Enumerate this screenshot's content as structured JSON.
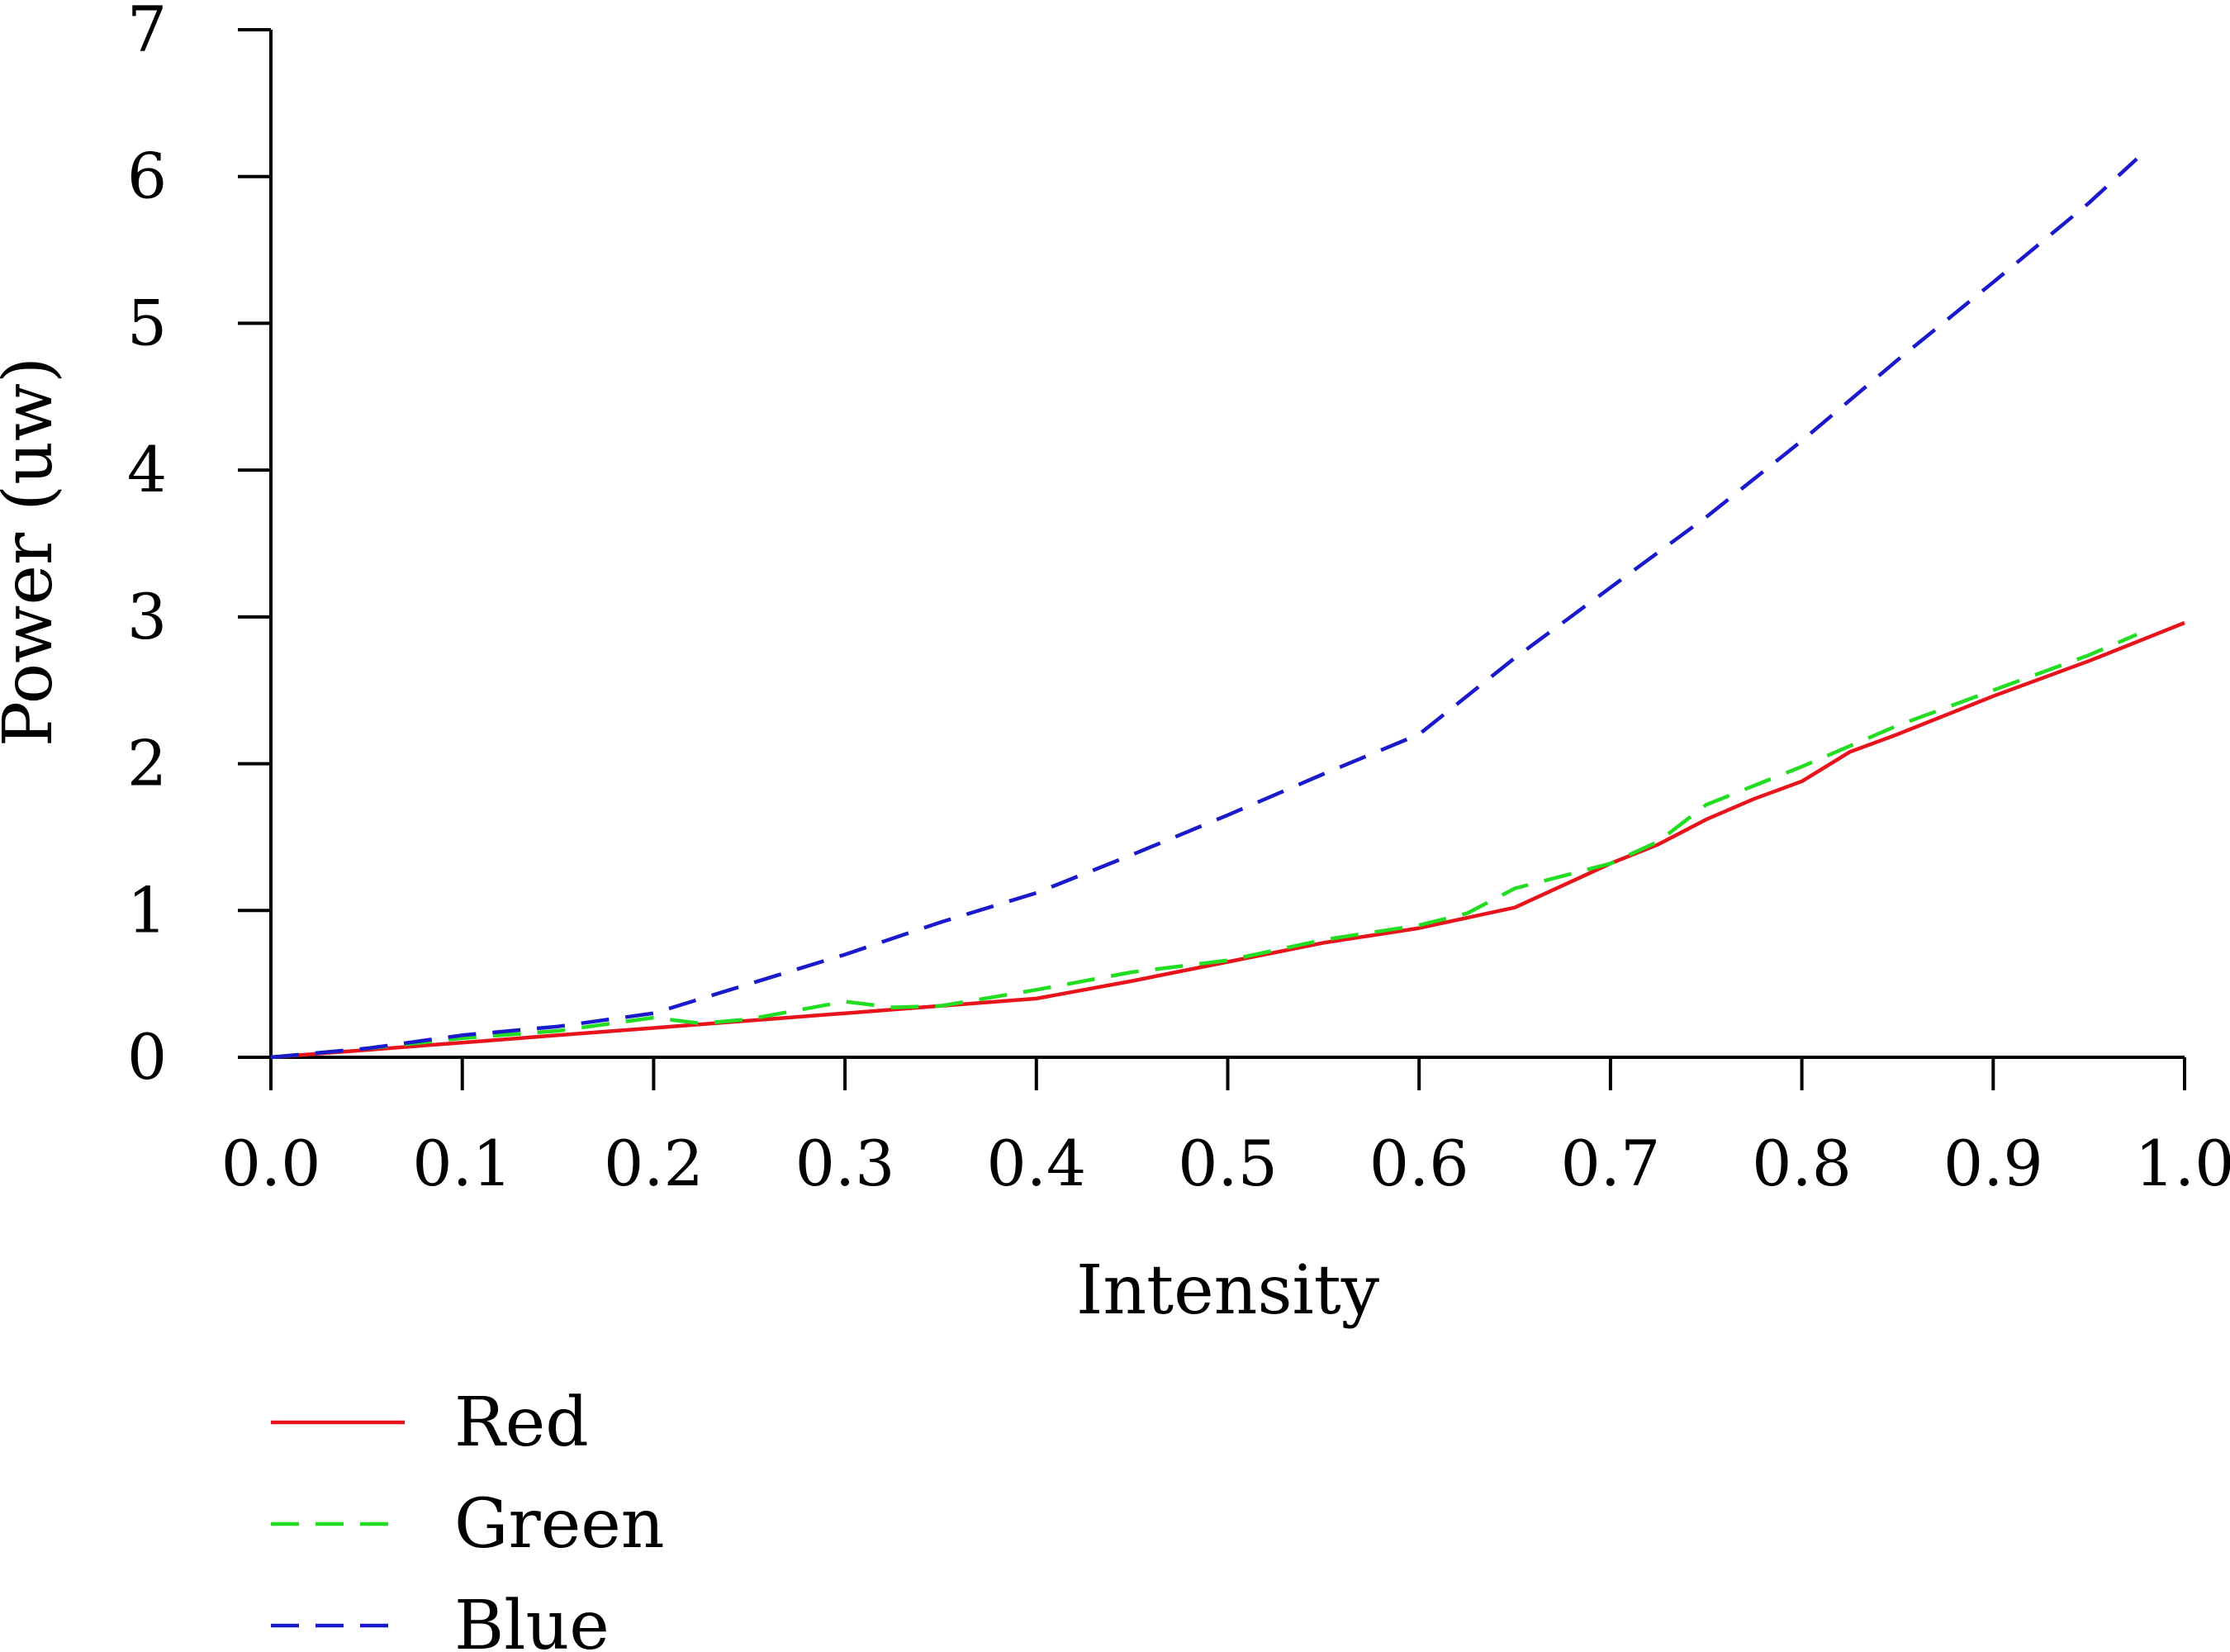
{
  "chart_data": {
    "type": "line",
    "title": "",
    "xlabel": "Intensity",
    "ylabel": "Power (uw)",
    "xlim": [
      0.0,
      1.0
    ],
    "ylim": [
      0,
      7
    ],
    "xticks": [
      "0.0",
      "0.1",
      "0.2",
      "0.3",
      "0.4",
      "0.5",
      "0.6",
      "0.7",
      "0.8",
      "0.9",
      "1.0"
    ],
    "yticks": [
      "0",
      "1",
      "2",
      "3",
      "4",
      "5",
      "6",
      "7"
    ],
    "grid": false,
    "legend_position": "bottom-left",
    "series": [
      {
        "name": "Red",
        "color": "#e8141c",
        "style": "solid",
        "x": [
          0.0,
          0.05,
          0.1,
          0.15,
          0.2,
          0.25,
          0.3,
          0.35,
          0.4,
          0.45,
          0.5,
          0.55,
          0.6,
          0.65,
          0.675,
          0.7,
          0.725,
          0.75,
          0.775,
          0.8,
          0.825,
          0.85,
          0.9,
          0.95,
          1.0
        ],
        "values": [
          0.0,
          0.05,
          0.1,
          0.15,
          0.2,
          0.25,
          0.3,
          0.35,
          0.4,
          0.52,
          0.65,
          0.78,
          0.88,
          1.02,
          1.17,
          1.32,
          1.45,
          1.62,
          1.76,
          1.88,
          2.08,
          2.2,
          2.46,
          2.7,
          2.96
        ]
      },
      {
        "name": "Green",
        "color": "#22dd22",
        "style": "dashed",
        "x": [
          0.0,
          0.05,
          0.1,
          0.15,
          0.2,
          0.225,
          0.25,
          0.3,
          0.325,
          0.35,
          0.4,
          0.45,
          0.5,
          0.55,
          0.6,
          0.625,
          0.65,
          0.7,
          0.725,
          0.75,
          0.8,
          0.85,
          0.9,
          0.95,
          0.975
        ],
        "values": [
          0.0,
          0.06,
          0.13,
          0.18,
          0.27,
          0.23,
          0.26,
          0.38,
          0.34,
          0.35,
          0.46,
          0.58,
          0.66,
          0.8,
          0.9,
          0.98,
          1.15,
          1.32,
          1.47,
          1.72,
          1.98,
          2.26,
          2.5,
          2.74,
          2.88
        ]
      },
      {
        "name": "Blue",
        "color": "#1a1acc",
        "style": "dashed",
        "x": [
          0.0,
          0.05,
          0.1,
          0.15,
          0.2,
          0.25,
          0.3,
          0.35,
          0.4,
          0.45,
          0.5,
          0.55,
          0.6,
          0.65,
          0.7,
          0.75,
          0.8,
          0.85,
          0.9,
          0.95,
          0.975
        ],
        "values": [
          0.0,
          0.06,
          0.15,
          0.21,
          0.3,
          0.5,
          0.7,
          0.92,
          1.12,
          1.38,
          1.65,
          1.93,
          2.2,
          2.72,
          3.2,
          3.68,
          4.2,
          4.75,
          5.28,
          5.82,
          6.12
        ]
      }
    ]
  }
}
